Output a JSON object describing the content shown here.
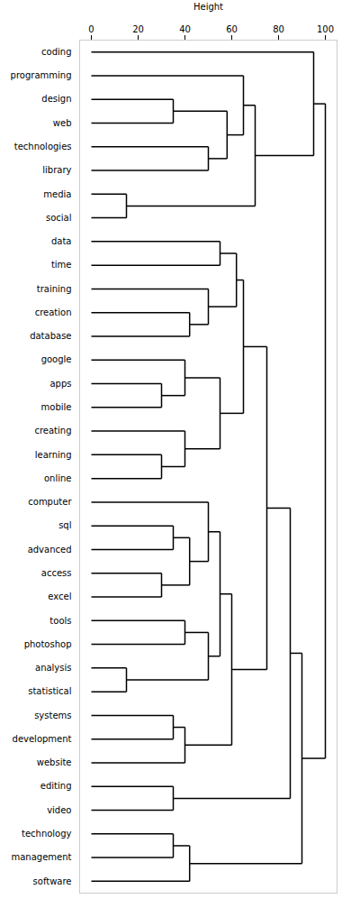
{
  "chart_data": {
    "type": "dendrogram",
    "xlabel": "Height",
    "categories": [
      "coding",
      "programming",
      "design",
      "web",
      "technologies",
      "library",
      "media",
      "social",
      "data",
      "time",
      "training",
      "creation",
      "database",
      "google",
      "apps",
      "mobile",
      "creating",
      "learning",
      "online",
      "computer",
      "sql",
      "advanced",
      "access",
      "excel",
      "tools",
      "photoshop",
      "analysis",
      "statistical",
      "systems",
      "development",
      "website",
      "editing",
      "video",
      "technology",
      "management",
      "software"
    ],
    "merges": [
      {
        "nodes": [
          2,
          3
        ],
        "h": 35,
        "id": 36
      },
      {
        "nodes": [
          4,
          5
        ],
        "h": 50,
        "id": 37
      },
      {
        "nodes": [
          36,
          37
        ],
        "h": 58,
        "id": 38
      },
      {
        "nodes": [
          6,
          7
        ],
        "h": 15,
        "id": 39
      },
      {
        "nodes": [
          1,
          38
        ],
        "h": 65,
        "id": 40
      },
      {
        "nodes": [
          40,
          39
        ],
        "h": 70,
        "id": 41
      },
      {
        "nodes": [
          8,
          9
        ],
        "h": 55,
        "id": 42
      },
      {
        "nodes": [
          11,
          12
        ],
        "h": 42,
        "id": 43
      },
      {
        "nodes": [
          10,
          43
        ],
        "h": 50,
        "id": 44
      },
      {
        "nodes": [
          14,
          15
        ],
        "h": 30,
        "id": 45
      },
      {
        "nodes": [
          13,
          45
        ],
        "h": 40,
        "id": 46
      },
      {
        "nodes": [
          17,
          18
        ],
        "h": 30,
        "id": 47
      },
      {
        "nodes": [
          16,
          47
        ],
        "h": 40,
        "id": 48
      },
      {
        "nodes": [
          46,
          48
        ],
        "h": 55,
        "id": 49
      },
      {
        "nodes": [
          20,
          21
        ],
        "h": 35,
        "id": 50
      },
      {
        "nodes": [
          22,
          23
        ],
        "h": 30,
        "id": 51
      },
      {
        "nodes": [
          50,
          51
        ],
        "h": 42,
        "id": 52
      },
      {
        "nodes": [
          19,
          52
        ],
        "h": 50,
        "id": 53
      },
      {
        "nodes": [
          24,
          25
        ],
        "h": 40,
        "id": 54
      },
      {
        "nodes": [
          26,
          27
        ],
        "h": 15,
        "id": 55
      },
      {
        "nodes": [
          54,
          55
        ],
        "h": 50,
        "id": 56
      },
      {
        "nodes": [
          53,
          56
        ],
        "h": 55,
        "id": 57
      },
      {
        "nodes": [
          28,
          29
        ],
        "h": 35,
        "id": 58
      },
      {
        "nodes": [
          58,
          30
        ],
        "h": 40,
        "id": 59
      },
      {
        "nodes": [
          57,
          59
        ],
        "h": 60,
        "id": 60
      },
      {
        "nodes": [
          44,
          42
        ],
        "h": 62,
        "id": 61
      },
      {
        "nodes": [
          61,
          49
        ],
        "h": 65,
        "id": 62
      },
      {
        "nodes": [
          62,
          60
        ],
        "h": 75,
        "id": 63
      },
      {
        "nodes": [
          31,
          32
        ],
        "h": 35,
        "id": 64
      },
      {
        "nodes": [
          33,
          34
        ],
        "h": 35,
        "id": 65
      },
      {
        "nodes": [
          65,
          35
        ],
        "h": 42,
        "id": 66
      },
      {
        "nodes": [
          63,
          64
        ],
        "h": 85,
        "id": 67
      },
      {
        "nodes": [
          67,
          66
        ],
        "h": 90,
        "id": 68
      },
      {
        "nodes": [
          0,
          41
        ],
        "h": 95,
        "id": 69
      },
      {
        "nodes": [
          69,
          68
        ],
        "h": 100,
        "id": 70
      }
    ],
    "xlim": [
      -5,
      105
    ],
    "xticks": [
      0,
      20,
      40,
      60,
      80,
      100
    ],
    "color": "#000000",
    "grid": false
  }
}
